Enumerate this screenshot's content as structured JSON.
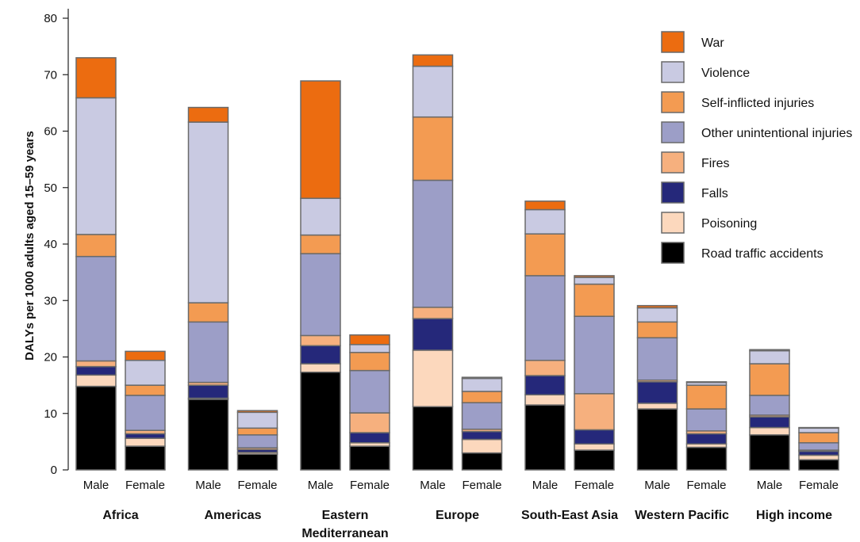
{
  "chart_data": {
    "type": "bar",
    "stacked": true,
    "ylabel": "DALYs per 1000 adults aged 15–59 years",
    "ylim": [
      0,
      80
    ],
    "yticks": [
      0,
      10,
      20,
      30,
      40,
      50,
      60,
      70,
      80
    ],
    "grid": false,
    "legend_position": "top-right",
    "groups": [
      {
        "region": "Africa",
        "bars": [
          {
            "sex": "Male"
          },
          {
            "sex": "Female"
          }
        ]
      },
      {
        "region": "Americas",
        "bars": [
          {
            "sex": "Male"
          },
          {
            "sex": "Female"
          }
        ]
      },
      {
        "region": "Eastern Mediterranean",
        "bars": [
          {
            "sex": "Male"
          },
          {
            "sex": "Female"
          }
        ]
      },
      {
        "region": "Europe",
        "bars": [
          {
            "sex": "Male"
          },
          {
            "sex": "Female"
          }
        ]
      },
      {
        "region": "South-East Asia",
        "bars": [
          {
            "sex": "Male"
          },
          {
            "sex": "Female"
          }
        ]
      },
      {
        "region": "Western Pacific",
        "bars": [
          {
            "sex": "Male"
          },
          {
            "sex": "Female"
          }
        ]
      },
      {
        "region": "High income",
        "bars": [
          {
            "sex": "Male"
          },
          {
            "sex": "Female"
          }
        ]
      }
    ],
    "series": [
      {
        "name": "Road traffic accidents",
        "color": "#000000",
        "values": [
          14.8,
          4.2,
          12.5,
          2.8,
          17.3,
          4.2,
          11.2,
          3.0,
          11.5,
          3.5,
          10.8,
          4.0,
          6.2,
          1.8
        ]
      },
      {
        "name": "Poisoning",
        "color": "#fcd8bd",
        "values": [
          2.0,
          1.4,
          0.2,
          0.3,
          1.5,
          0.6,
          10.0,
          2.4,
          1.8,
          1.1,
          1.0,
          0.6,
          1.3,
          0.8
        ]
      },
      {
        "name": "Falls",
        "color": "#25287a",
        "values": [
          1.5,
          0.8,
          2.3,
          0.5,
          3.2,
          1.8,
          5.6,
          1.4,
          3.4,
          2.5,
          3.8,
          1.8,
          1.9,
          0.7
        ]
      },
      {
        "name": "Fires",
        "color": "#f6b07e",
        "values": [
          1.0,
          0.6,
          0.5,
          0.3,
          1.8,
          3.5,
          2.0,
          0.4,
          2.7,
          6.4,
          0.3,
          0.5,
          0.3,
          0.2
        ]
      },
      {
        "name": "Other unintentional injuries",
        "color": "#9c9ec7",
        "values": [
          18.5,
          6.2,
          10.7,
          2.3,
          14.5,
          7.5,
          22.5,
          4.7,
          15.0,
          13.7,
          7.5,
          3.9,
          3.5,
          1.3
        ]
      },
      {
        "name": "Self-inflicted injuries",
        "color": "#f39b52",
        "values": [
          3.9,
          1.8,
          3.4,
          1.2,
          3.3,
          3.2,
          11.2,
          2.0,
          7.4,
          5.7,
          2.8,
          4.2,
          5.6,
          1.8
        ]
      },
      {
        "name": "Violence",
        "color": "#c9cae2",
        "values": [
          24.2,
          4.4,
          32.0,
          2.8,
          6.5,
          1.4,
          9.0,
          2.3,
          4.3,
          1.2,
          2.5,
          0.5,
          2.3,
          0.8
        ]
      },
      {
        "name": "War",
        "color": "#ec6c10",
        "values": [
          7.1,
          1.6,
          2.6,
          0.3,
          20.8,
          1.7,
          2.0,
          0.2,
          1.5,
          0.3,
          0.4,
          0.1,
          0.2,
          0.1
        ]
      }
    ]
  }
}
